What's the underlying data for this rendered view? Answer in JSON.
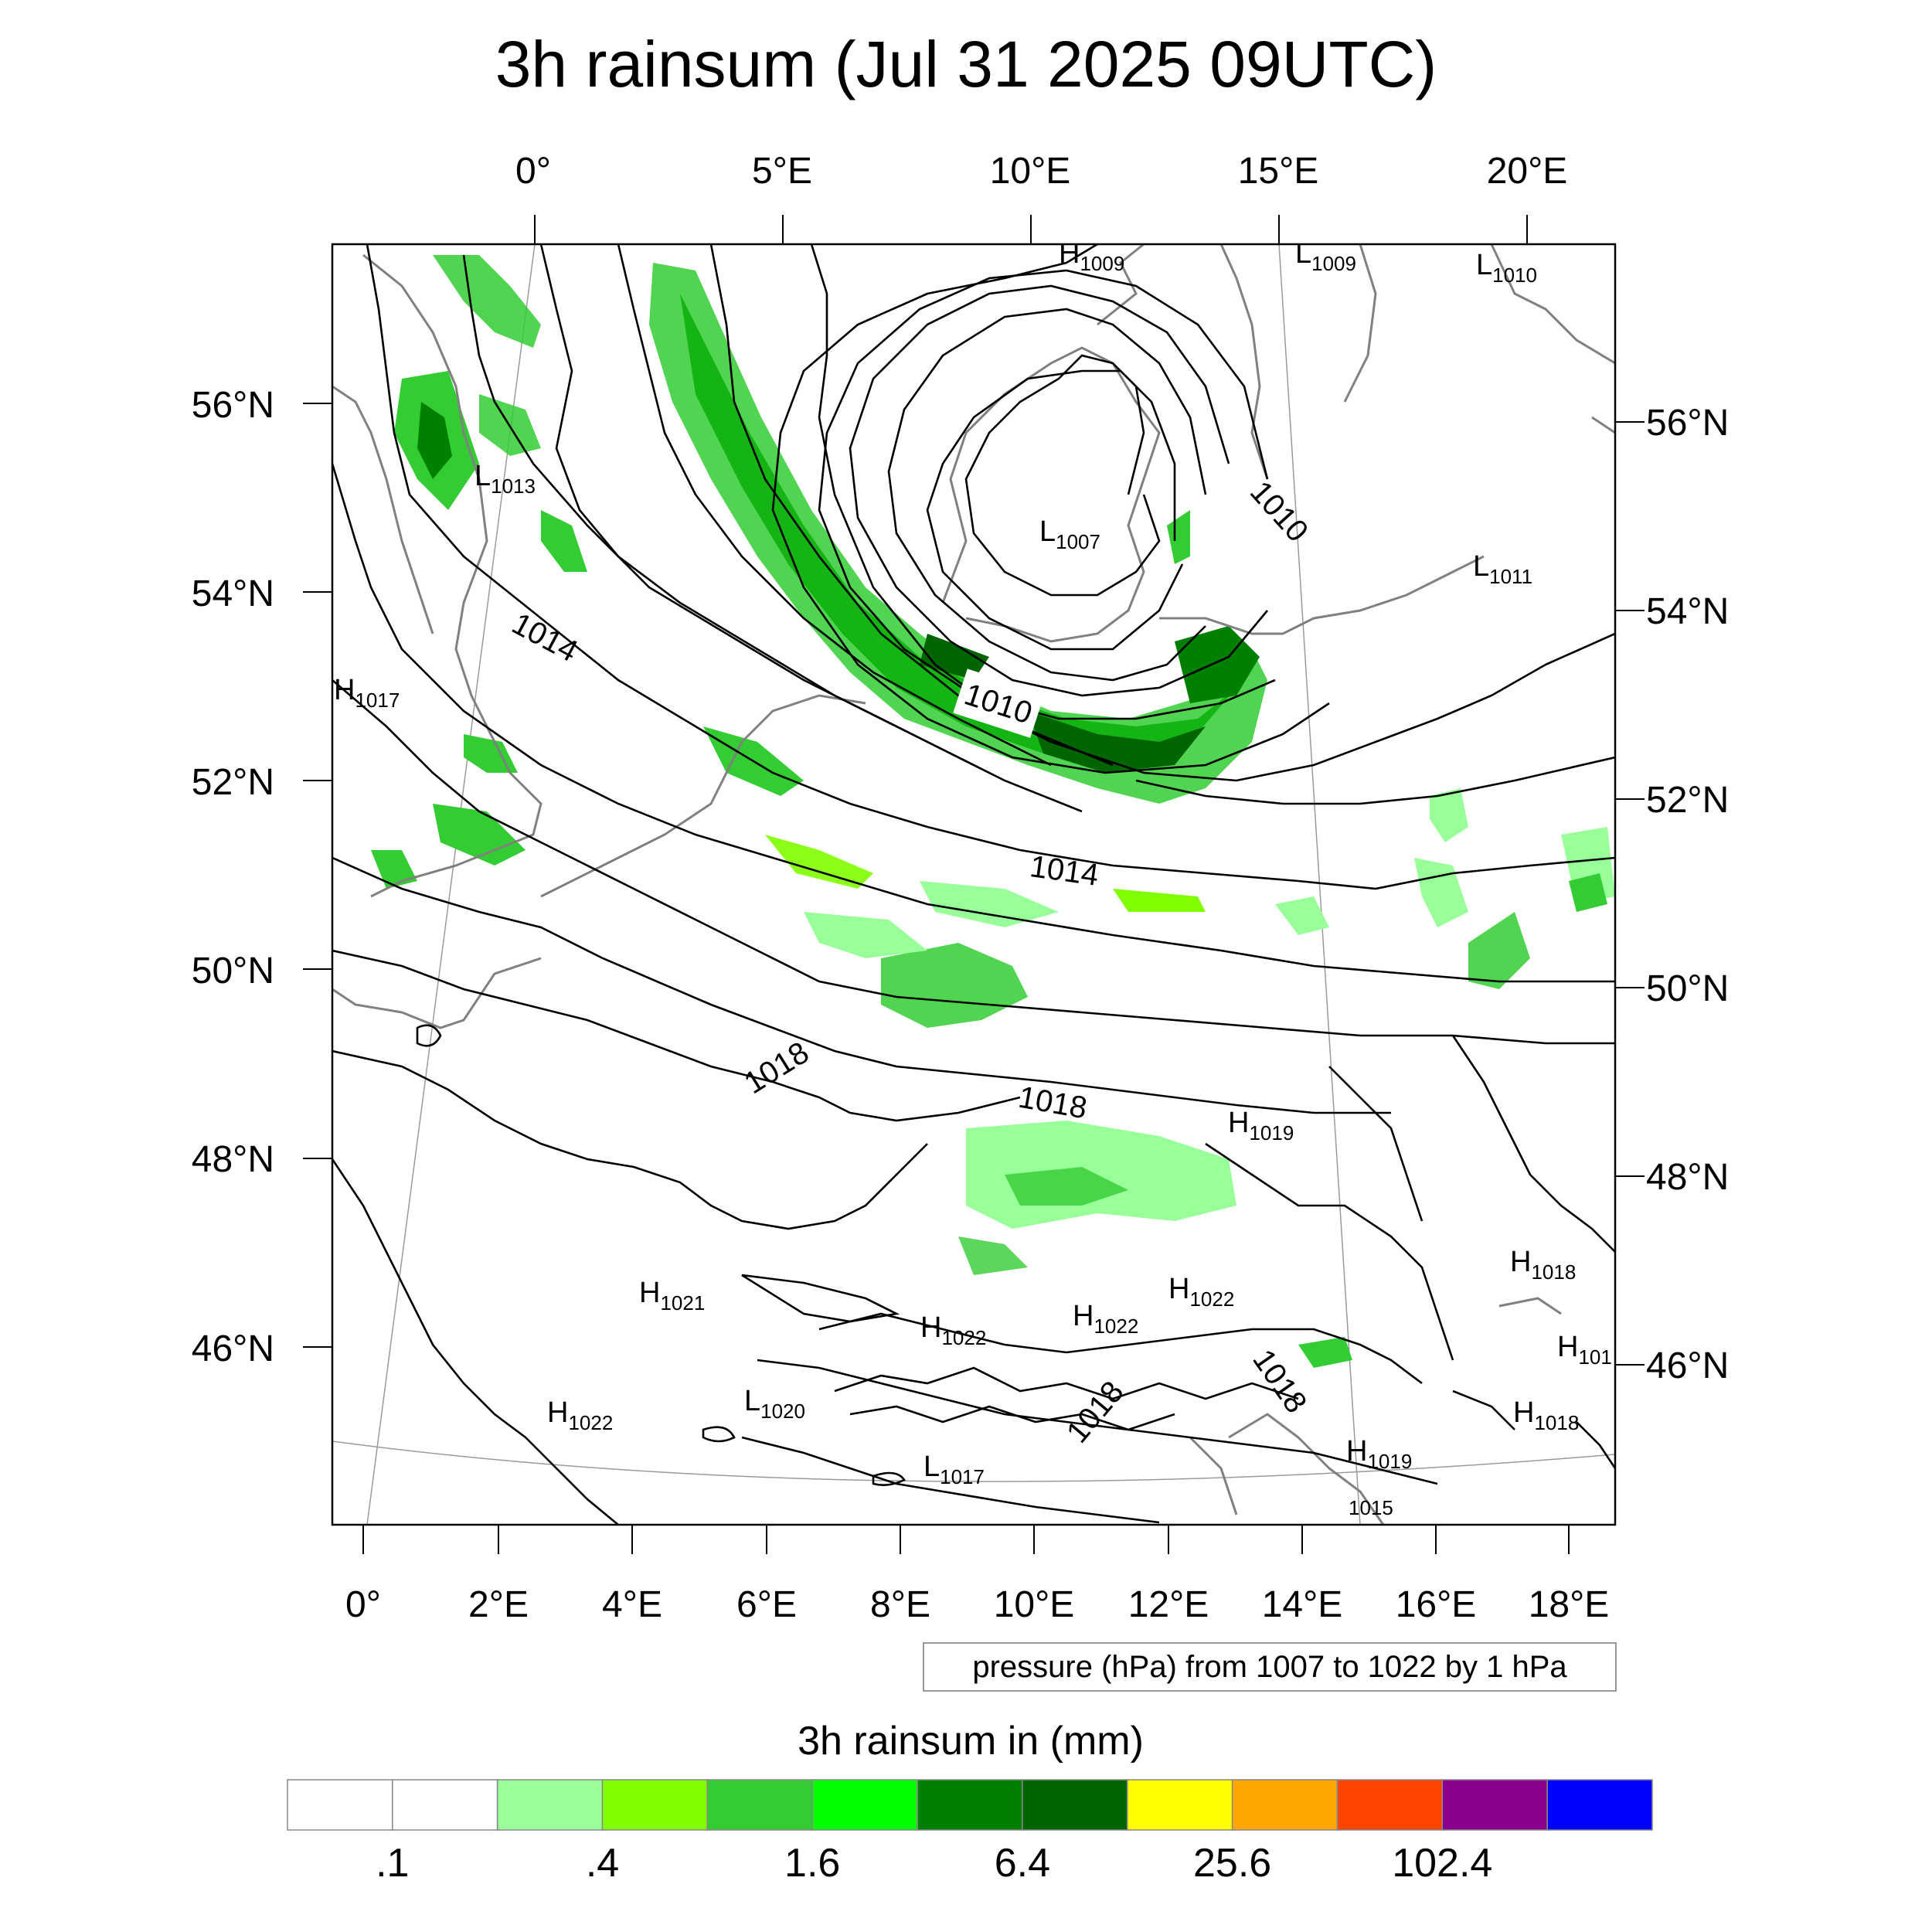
{
  "title": "3h rainsum (Jul 31 2025 09UTC)",
  "top_lon_labels": [
    "0°",
    "5°E",
    "10°E",
    "15°E",
    "20°E"
  ],
  "bottom_lon_labels": [
    "0°",
    "2°E",
    "4°E",
    "6°E",
    "8°E",
    "10°E",
    "12°E",
    "14°E",
    "16°E",
    "18°E"
  ],
  "left_lat_labels": [
    "56°N",
    "54°N",
    "52°N",
    "50°N",
    "48°N",
    "46°N"
  ],
  "right_lat_labels": [
    "56°N",
    "54°N",
    "52°N",
    "50°N",
    "48°N",
    "46°N"
  ],
  "pressure_label": "pressure (hPa) from 1007 to 1022 by 1 hPa",
  "colorbar": {
    "title": "3h rainsum in (mm)",
    "colors": [
      "#ffffff",
      "#ffffff",
      "#99ff99",
      "#80ff00",
      "#33cc33",
      "#00ff00",
      "#008000",
      "#006400",
      "#ffff00",
      "#ffa500",
      "#ff4500",
      "#8b008b",
      "#0000ff"
    ],
    "tick_labels": [
      ".1",
      ".4",
      "1.6",
      "6.4",
      "25.6",
      "102.4"
    ]
  },
  "contour_labels": [
    "1014",
    "1010",
    "1010",
    "1014",
    "1018",
    "1018",
    "1018",
    "1018"
  ],
  "centers": [
    {
      "type": "H",
      "value": "1009"
    },
    {
      "type": "L",
      "value": "1009"
    },
    {
      "type": "L",
      "value": "1010"
    },
    {
      "type": "L",
      "value": "1013"
    },
    {
      "type": "L",
      "value": "1007"
    },
    {
      "type": "L",
      "value": "1011"
    },
    {
      "type": "H",
      "value": "1017"
    },
    {
      "type": "H",
      "value": "1019"
    },
    {
      "type": "H",
      "value": "1018"
    },
    {
      "type": "H",
      "value": "1021"
    },
    {
      "type": "H",
      "value": "1022"
    },
    {
      "type": "H",
      "value": "1022"
    },
    {
      "type": "H",
      "value": "1022"
    },
    {
      "type": "H",
      "value": "101"
    },
    {
      "type": "L",
      "value": "1020"
    },
    {
      "type": "H",
      "value": "1022"
    },
    {
      "type": "H",
      "value": "1018"
    },
    {
      "type": "H",
      "value": "1019"
    },
    {
      "type": "L",
      "value": "1017"
    },
    {
      "type": "L",
      "value": "1015"
    }
  ]
}
